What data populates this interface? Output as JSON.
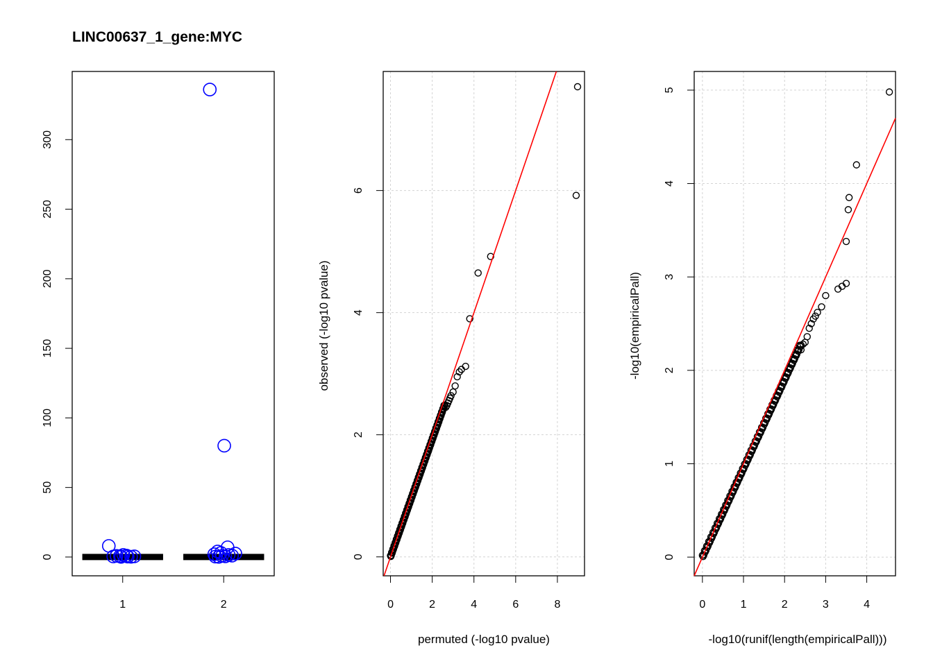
{
  "figure": {
    "title": "LINC00637_1_gene:MYC"
  },
  "colors": {
    "box_points": "#0000ff",
    "qq_points": "#000000",
    "reference_line": "#ff0000",
    "grid": "#d3d3d3"
  },
  "chart_data": [
    {
      "type": "box",
      "title": "LINC00637_1_gene:MYC",
      "xlabel": "",
      "ylabel": "",
      "categories": [
        "1",
        "2"
      ],
      "xlim": [
        0.5,
        2.5
      ],
      "ylim": [
        -13.5,
        349
      ],
      "y_ticks": [
        0,
        50,
        100,
        150,
        200,
        250,
        300
      ],
      "grid": false,
      "series": [
        {
          "category": "1",
          "median": 0,
          "q1": 0,
          "q3": 0,
          "outliers": [
            8,
            1.5,
            1,
            0.8,
            0.6,
            0.5,
            0.4,
            0.3,
            0.2,
            0.1
          ]
        },
        {
          "category": "2",
          "median": 0,
          "q1": 0,
          "q3": 0,
          "outliers": [
            336,
            80,
            7,
            4,
            3,
            2.5,
            2,
            1.5,
            1,
            0.8,
            0.5,
            0.3,
            0.1
          ]
        }
      ]
    },
    {
      "type": "scatter",
      "xlabel": "permuted (-log10 pvalue)",
      "ylabel": "observed (-log10 pvalue)",
      "xlim": [
        -0.35,
        9.3
      ],
      "ylim": [
        -0.31,
        7.95
      ],
      "x_ticks": [
        0,
        2,
        4,
        6,
        8
      ],
      "y_ticks": [
        0,
        2,
        4,
        6
      ],
      "grid": true,
      "reference_line": {
        "slope": 1,
        "intercept": 0
      },
      "dense_band": {
        "x_from": 0,
        "x_to": 2.6,
        "slope": 0.96
      },
      "points": {
        "x": [
          2.65,
          2.7,
          2.75,
          2.8,
          2.85,
          2.9,
          3.0,
          3.1,
          3.2,
          3.3,
          3.4,
          3.6,
          3.8,
          4.2,
          4.8,
          8.9
        ],
        "y": [
          2.45,
          2.48,
          2.52,
          2.56,
          2.6,
          2.64,
          2.7,
          2.8,
          2.95,
          3.03,
          3.07,
          3.12,
          3.9,
          4.65,
          4.92,
          5.92
        ]
      },
      "extra_point": {
        "x": 8.95,
        "y": 7.7
      }
    },
    {
      "type": "scatter",
      "xlabel": "-log10(runif(length(empiricalPall)))",
      "ylabel": "-log10(empiricalPall)",
      "xlim": [
        -0.2,
        4.7
      ],
      "ylim": [
        -0.2,
        5.2
      ],
      "x_ticks": [
        0,
        1,
        2,
        3,
        4
      ],
      "y_ticks": [
        0,
        1,
        2,
        3,
        4,
        5
      ],
      "grid": true,
      "reference_line": {
        "slope": 1,
        "intercept": 0
      },
      "dense_band": {
        "x_from": 0,
        "x_to": 2.4,
        "slope": 0.95
      },
      "points": {
        "x": [
          2.4,
          2.45,
          2.5,
          2.55,
          2.6,
          2.65,
          2.7,
          2.75,
          2.8,
          2.9,
          3.0,
          3.3,
          3.4,
          3.5,
          3.5,
          3.55,
          3.57,
          3.75,
          4.55
        ],
        "y": [
          2.22,
          2.28,
          2.3,
          2.36,
          2.45,
          2.5,
          2.55,
          2.58,
          2.62,
          2.68,
          2.8,
          2.87,
          2.9,
          2.93,
          3.38,
          3.72,
          3.85,
          4.2,
          4.98
        ]
      }
    }
  ]
}
